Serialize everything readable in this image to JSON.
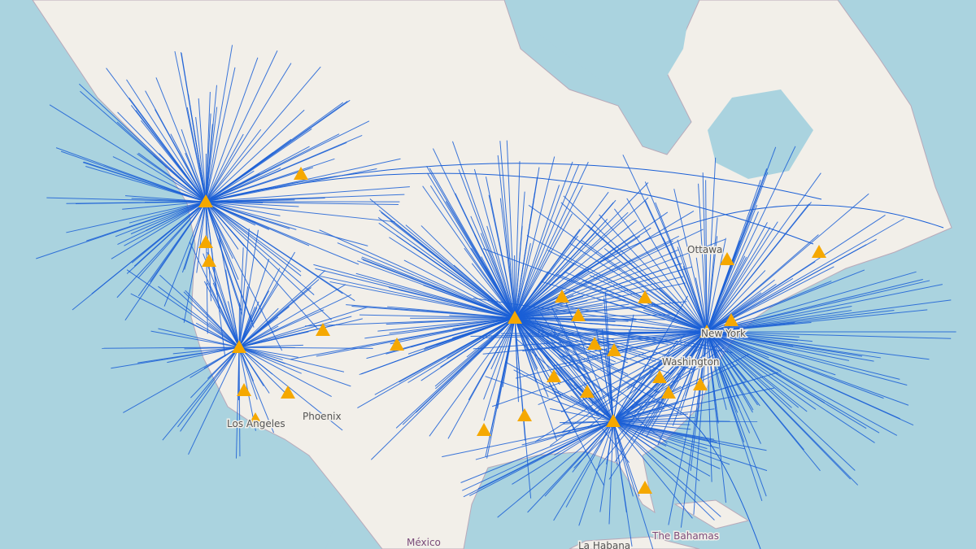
{
  "map": {
    "labels": {
      "ottawa": "Ottawa",
      "new_york": "New York",
      "washington": "Washington",
      "los_angeles": "Los Angeles",
      "phoenix": "Phoenix",
      "mexico": "México",
      "havana": "La Habana",
      "bahamas": "The Bahamas"
    },
    "colors": {
      "water": "#aad3df",
      "land": "#f2efe9",
      "route_line": "#1a5fd6",
      "airport_marker": "#f5a800"
    },
    "icons": {
      "airport_marker": "triangle-icon"
    }
  }
}
